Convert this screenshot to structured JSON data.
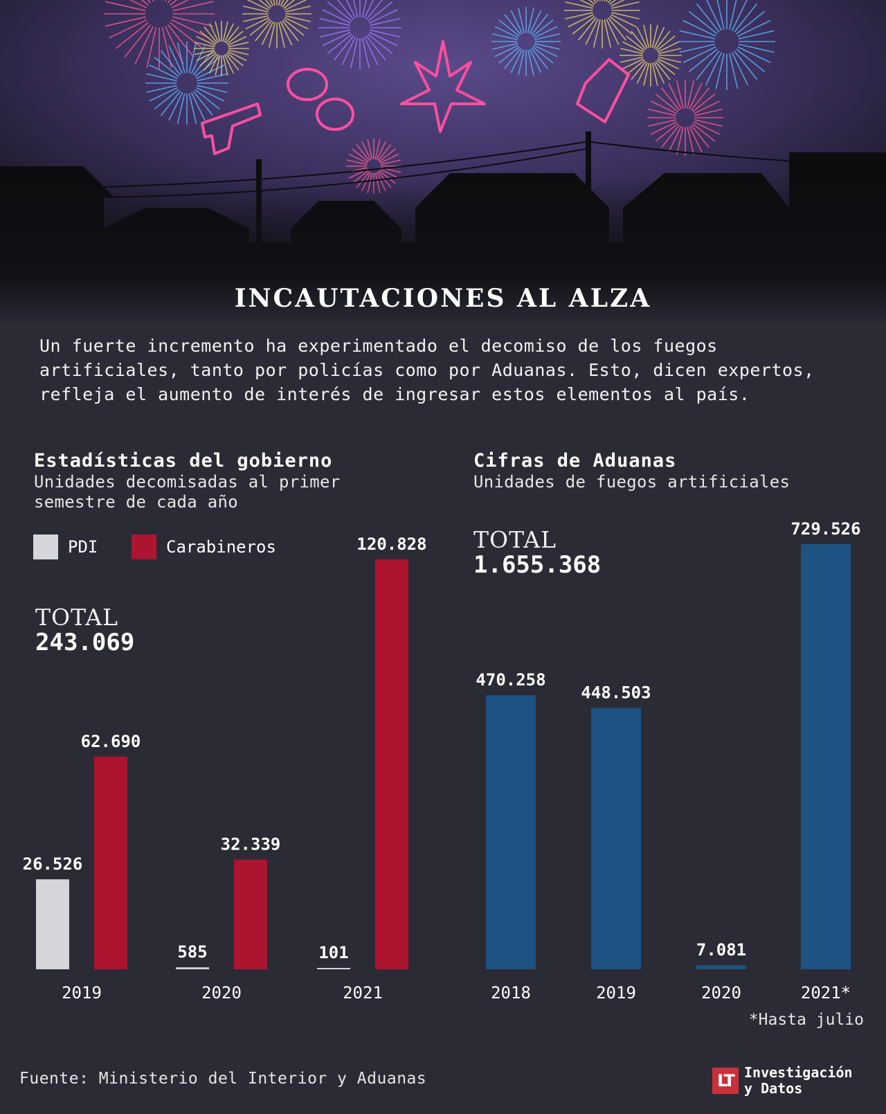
{
  "header": {
    "title": "INCAUTACIONES AL ALZA",
    "intro": "Un fuerte incremento ha experimentado el decomiso de los fuegos\nartificiales, tanto por policías como por Aduanas. Esto, dicen expertos,\nrefleja el aumento de interés de ingresar estos elementos al país."
  },
  "left_panel": {
    "title": "Estadísticas del gobierno",
    "subtitle": "Unidades decomisadas al primer\nsemestre de cada año",
    "legend": [
      {
        "label": "PDI",
        "color": "#d6d6da"
      },
      {
        "label": "Carabineros",
        "color": "#ac1430"
      }
    ],
    "total_label": "TOTAL",
    "total_value": "243.069"
  },
  "right_panel": {
    "title": "Cifras de Aduanas",
    "subtitle": "Unidades de fuegos artificiales",
    "total_label": "TOTAL",
    "total_value": "1.655.368",
    "note": "*Hasta julio"
  },
  "footer": {
    "source": "Fuente: Ministerio del Interior y Aduanas",
    "logo_mark": "LT",
    "logo_text": "Investigación\ny Datos"
  },
  "chart_data": [
    {
      "type": "bar",
      "title": "Estadísticas del gobierno",
      "categories": [
        "2019",
        "2020",
        "2021"
      ],
      "series": [
        {
          "name": "PDI",
          "color": "#d6d6da",
          "values": [
            26526,
            585,
            101
          ],
          "labels": [
            "26.526",
            "585",
            "101"
          ]
        },
        {
          "name": "Carabineros",
          "color": "#ac1430",
          "values": [
            62690,
            32339,
            120828
          ],
          "labels": [
            "62.690",
            "32.339",
            "120.828"
          ]
        }
      ],
      "ylim": [
        0,
        120828
      ],
      "grid": false
    },
    {
      "type": "bar",
      "title": "Cifras de Aduanas",
      "categories": [
        "2018",
        "2019",
        "2020",
        "2021*"
      ],
      "series": [
        {
          "color": "#1d5283",
          "values": [
            470258,
            448503,
            7081,
            729526
          ],
          "labels": [
            "470.258",
            "448.503",
            "7.081",
            "729.526"
          ]
        }
      ],
      "ylim": [
        0,
        729526
      ],
      "grid": false
    }
  ]
}
